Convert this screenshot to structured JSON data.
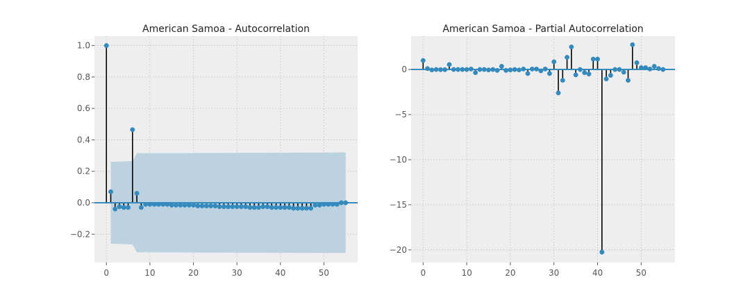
{
  "colors": {
    "plot_bg": "#eeeeee",
    "grid": "#c8c8c8",
    "marker": "#348abd",
    "stem": "#000000",
    "baseline": "#348abd",
    "confint": "#bcd2e0"
  },
  "chart_data": [
    {
      "type": "scatter",
      "subtype": "acf-stem",
      "title": "American Samoa - Autocorrelation",
      "xlabel": "",
      "ylabel": "",
      "xlim": [
        -2.75,
        57.75
      ],
      "ylim": [
        -0.38,
        1.06
      ],
      "xticks": [
        0,
        10,
        20,
        30,
        40,
        50
      ],
      "yticks": [
        -0.2,
        0.0,
        0.2,
        0.4,
        0.6,
        0.8,
        1.0
      ],
      "ytick_labels": [
        "−0.2",
        "0.0",
        "0.2",
        "0.4",
        "0.6",
        "0.8",
        "1.0"
      ],
      "grid": true,
      "lags": [
        0,
        1,
        2,
        3,
        4,
        5,
        6,
        7,
        8,
        9,
        10,
        11,
        12,
        13,
        14,
        15,
        16,
        17,
        18,
        19,
        20,
        21,
        22,
        23,
        24,
        25,
        26,
        27,
        28,
        29,
        30,
        31,
        32,
        33,
        34,
        35,
        36,
        37,
        38,
        39,
        40,
        41,
        42,
        43,
        44,
        45,
        46,
        47,
        48,
        49,
        50,
        51,
        52,
        53,
        54,
        55
      ],
      "values": [
        1.0,
        0.07,
        -0.04,
        -0.025,
        -0.03,
        -0.03,
        0.465,
        0.06,
        -0.03,
        -0.01,
        -0.01,
        -0.01,
        -0.01,
        -0.01,
        -0.01,
        -0.015,
        -0.015,
        -0.015,
        -0.015,
        -0.015,
        -0.015,
        -0.02,
        -0.02,
        -0.02,
        -0.02,
        -0.02,
        -0.025,
        -0.025,
        -0.025,
        -0.025,
        -0.025,
        -0.025,
        -0.025,
        -0.03,
        -0.03,
        -0.03,
        -0.025,
        -0.025,
        -0.03,
        -0.03,
        -0.03,
        -0.03,
        -0.03,
        -0.035,
        -0.035,
        -0.035,
        -0.035,
        -0.035,
        -0.015,
        -0.015,
        -0.01,
        -0.01,
        -0.01,
        -0.01,
        0.0,
        0.0
      ],
      "confint_band": {
        "lags": [
          1,
          6,
          7,
          55
        ],
        "upper": [
          0.26,
          0.265,
          0.315,
          0.32
        ],
        "lower": [
          -0.26,
          -0.265,
          -0.315,
          -0.32
        ]
      }
    },
    {
      "type": "scatter",
      "subtype": "pacf-stem",
      "title": "American Samoa - Partial Autocorrelation",
      "xlabel": "",
      "ylabel": "",
      "xlim": [
        -2.75,
        57.75
      ],
      "ylim": [
        -21.4,
        3.7
      ],
      "xticks": [
        0,
        10,
        20,
        30,
        40,
        50
      ],
      "yticks": [
        0,
        -5,
        -10,
        -15,
        -20
      ],
      "ytick_labels": [
        "0",
        "−5",
        "−10",
        "−15",
        "−20"
      ],
      "grid": true,
      "lags": [
        0,
        1,
        2,
        3,
        4,
        5,
        6,
        7,
        8,
        9,
        10,
        11,
        12,
        13,
        14,
        15,
        16,
        17,
        18,
        19,
        20,
        21,
        22,
        23,
        24,
        25,
        26,
        27,
        28,
        29,
        30,
        31,
        32,
        33,
        34,
        35,
        36,
        37,
        38,
        39,
        40,
        41,
        42,
        43,
        44,
        45,
        46,
        47,
        48,
        49,
        50,
        51,
        52,
        53,
        54,
        55
      ],
      "values": [
        1.0,
        0.1,
        -0.05,
        0.0,
        -0.02,
        -0.02,
        0.55,
        0.0,
        0.0,
        0.0,
        0.0,
        0.05,
        -0.35,
        0.0,
        0.0,
        -0.05,
        0.0,
        -0.1,
        0.35,
        -0.1,
        -0.05,
        0.0,
        -0.05,
        0.05,
        -0.45,
        0.05,
        0.05,
        -0.15,
        0.05,
        -0.45,
        0.85,
        -2.6,
        -1.2,
        1.35,
        2.5,
        -0.6,
        0.0,
        -0.35,
        -0.5,
        1.15,
        1.15,
        -20.25,
        -1.05,
        -0.65,
        0.0,
        0.0,
        -0.3,
        -1.2,
        2.75,
        0.75,
        0.2,
        0.2,
        0.05,
        0.35,
        0.1,
        0.0
      ]
    }
  ]
}
